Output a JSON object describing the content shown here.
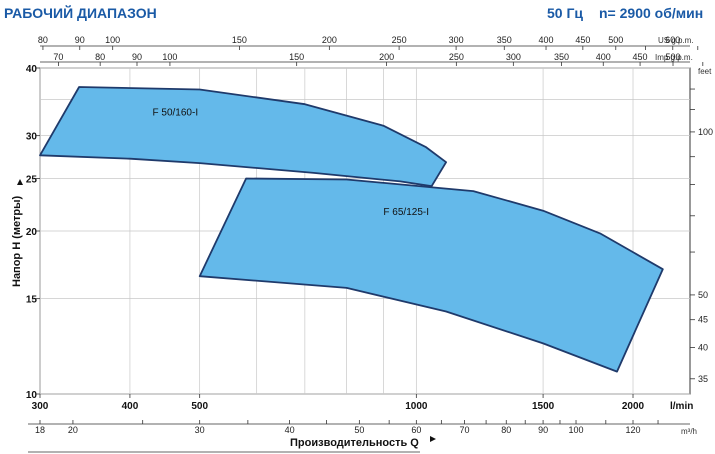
{
  "header": {
    "title": "РАБОЧИЙ ДИАПАЗОН",
    "frequency": "50 Гц",
    "speed": "n= 2900 об/мин"
  },
  "chart_data": {
    "type": "area",
    "title": "РАБОЧИЙ ДИАПАЗОН",
    "x_axis": {
      "label": "Производительность Q",
      "unit": "l/min",
      "scale": "log",
      "range": [
        300,
        2400
      ],
      "ticks": [
        300,
        400,
        500,
        1000,
        1500,
        2000
      ],
      "minor_ticks": [
        600,
        700,
        800,
        900
      ]
    },
    "y_axis": {
      "label": "Напор H (метры)",
      "scale": "log",
      "range": [
        10,
        40
      ],
      "ticks": [
        10,
        15,
        20,
        25,
        30,
        40
      ],
      "minor_ticks": [
        35
      ]
    },
    "x_axis_bottom_secondary": {
      "unit": "m³/h",
      "ticks": [
        18,
        20,
        30,
        40,
        50,
        60,
        70,
        80,
        90,
        100,
        120
      ],
      "minor_ticks": [
        25,
        35,
        45,
        55,
        65,
        75,
        85,
        95,
        110,
        130
      ]
    },
    "x_axis_top_us": {
      "unit": "US g.p.m.",
      "ticks": [
        80,
        90,
        100,
        150,
        200,
        250,
        300,
        350,
        400,
        450,
        500,
        600
      ],
      "minor_ticks": [
        550,
        650
      ]
    },
    "x_axis_top_imp": {
      "unit": "Imp g.p.m.",
      "ticks": [
        70,
        80,
        90,
        100,
        150,
        200,
        250,
        300,
        350,
        400,
        450,
        500
      ],
      "minor_ticks": [
        550
      ]
    },
    "y_axis_right_feet": {
      "unit": "feet",
      "ticks": [
        35,
        40,
        45,
        50,
        100
      ],
      "minor_ticks": [
        60,
        70,
        80,
        90,
        110,
        120
      ]
    },
    "grid": true,
    "series": [
      {
        "name": "F 50/160-I",
        "fill": "#64b9ea",
        "stroke": "#1f3a6b",
        "label_at": [
          430,
          32.7
        ],
        "polygon": [
          [
            300,
            27.6
          ],
          [
            340,
            36.9
          ],
          [
            500,
            36.5
          ],
          [
            700,
            34.3
          ],
          [
            900,
            31.3
          ],
          [
            1030,
            28.6
          ],
          [
            1100,
            26.8
          ],
          [
            1050,
            24.2
          ],
          [
            950,
            24.7
          ],
          [
            720,
            25.6
          ],
          [
            500,
            26.7
          ],
          [
            400,
            27.2
          ]
        ]
      },
      {
        "name": "F 65/125-I",
        "fill": "#64b9ea",
        "stroke": "#1f3a6b",
        "label_at": [
          900,
          21.4
        ],
        "polygon": [
          [
            580,
            25.0
          ],
          [
            800,
            24.9
          ],
          [
            1200,
            23.7
          ],
          [
            1500,
            21.8
          ],
          [
            1800,
            19.8
          ],
          [
            2200,
            17.0
          ],
          [
            1900,
            11.0
          ],
          [
            1500,
            12.4
          ],
          [
            1100,
            14.2
          ],
          [
            800,
            15.7
          ],
          [
            500,
            16.5
          ]
        ]
      }
    ]
  }
}
